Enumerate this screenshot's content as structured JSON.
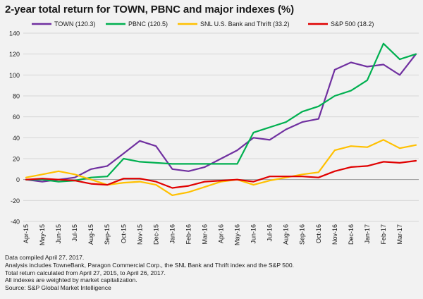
{
  "chart_data": {
    "type": "line",
    "title": "2-year total return for TOWN, PBNC and major indexes (%)",
    "xlabel": "",
    "ylabel": "",
    "ylim": [
      -40,
      140
    ],
    "yticks": [
      -40,
      -20,
      0,
      20,
      40,
      60,
      80,
      100,
      120,
      140
    ],
    "grid": "horizontal",
    "legend_position": "top",
    "x_tick_labels": [
      "Apr-15",
      "May-15",
      "Jun-15",
      "Jul-15",
      "Aug-15",
      "Sep-15",
      "Oct-15",
      "Nov-15",
      "Dec-15",
      "Jan-16",
      "Feb-16",
      "Mar-16",
      "Apr-16",
      "May-16",
      "Jun-16",
      "Jul-16",
      "Aug-16",
      "Sep-16",
      "Oct-16",
      "Nov-16",
      "Dec-16",
      "Jan-17",
      "Feb-17",
      "Mar-17"
    ],
    "x": [
      "2015-04-27",
      "2015-05-27",
      "2015-06-27",
      "2015-07-27",
      "2015-08-27",
      "2015-09-27",
      "2015-10-27",
      "2015-11-27",
      "2015-12-27",
      "2016-01-27",
      "2016-02-27",
      "2016-03-27",
      "2016-04-27",
      "2016-05-27",
      "2016-06-27",
      "2016-07-27",
      "2016-08-27",
      "2016-09-27",
      "2016-10-27",
      "2016-11-27",
      "2016-12-27",
      "2017-01-27",
      "2017-02-27",
      "2017-03-27",
      "2017-04-26"
    ],
    "series": [
      {
        "name": "TOWN (120.3)",
        "color": "#7030a0",
        "values": [
          0,
          -2,
          0,
          2,
          10,
          13,
          25,
          37,
          32,
          10,
          8,
          12,
          20,
          28,
          40,
          38,
          48,
          55,
          58,
          105,
          112,
          108,
          110,
          100,
          120
        ]
      },
      {
        "name": "PBNC (120.5)",
        "color": "#00b050",
        "values": [
          0,
          0,
          -2,
          -1,
          2,
          3,
          20,
          17,
          16,
          15,
          15,
          15,
          15,
          15,
          45,
          50,
          55,
          65,
          70,
          80,
          85,
          95,
          130,
          115,
          120
        ]
      },
      {
        "name": "SNL U.S. Bank and Thrift (33.2)",
        "color": "#ffc000",
        "values": [
          2,
          5,
          8,
          5,
          0,
          -5,
          -3,
          -2,
          -5,
          -15,
          -12,
          -7,
          -2,
          0,
          -5,
          -1,
          2,
          5,
          7,
          28,
          32,
          31,
          38,
          30,
          33
        ]
      },
      {
        "name": "S&P 500 (18.2)",
        "color": "#e00000",
        "values": [
          0,
          1,
          0,
          -1,
          -4,
          -5,
          1,
          1,
          -2,
          -8,
          -6,
          -2,
          -1,
          0,
          -2,
          3,
          3,
          3,
          2,
          8,
          12,
          13,
          17,
          16,
          18
        ]
      }
    ]
  },
  "footnotes": [
    "Data compiled April 27, 2017.",
    "Analysis includes TowneBank, Paragon Commercial Corp., the SNL Bank and Thrift index and the S&P 500.",
    "Total return calculated from April 27, 2015, to April 26, 2017.",
    "All indexes are weighted by market capitalization.",
    "Source: S&P Global Market Intelligence"
  ]
}
